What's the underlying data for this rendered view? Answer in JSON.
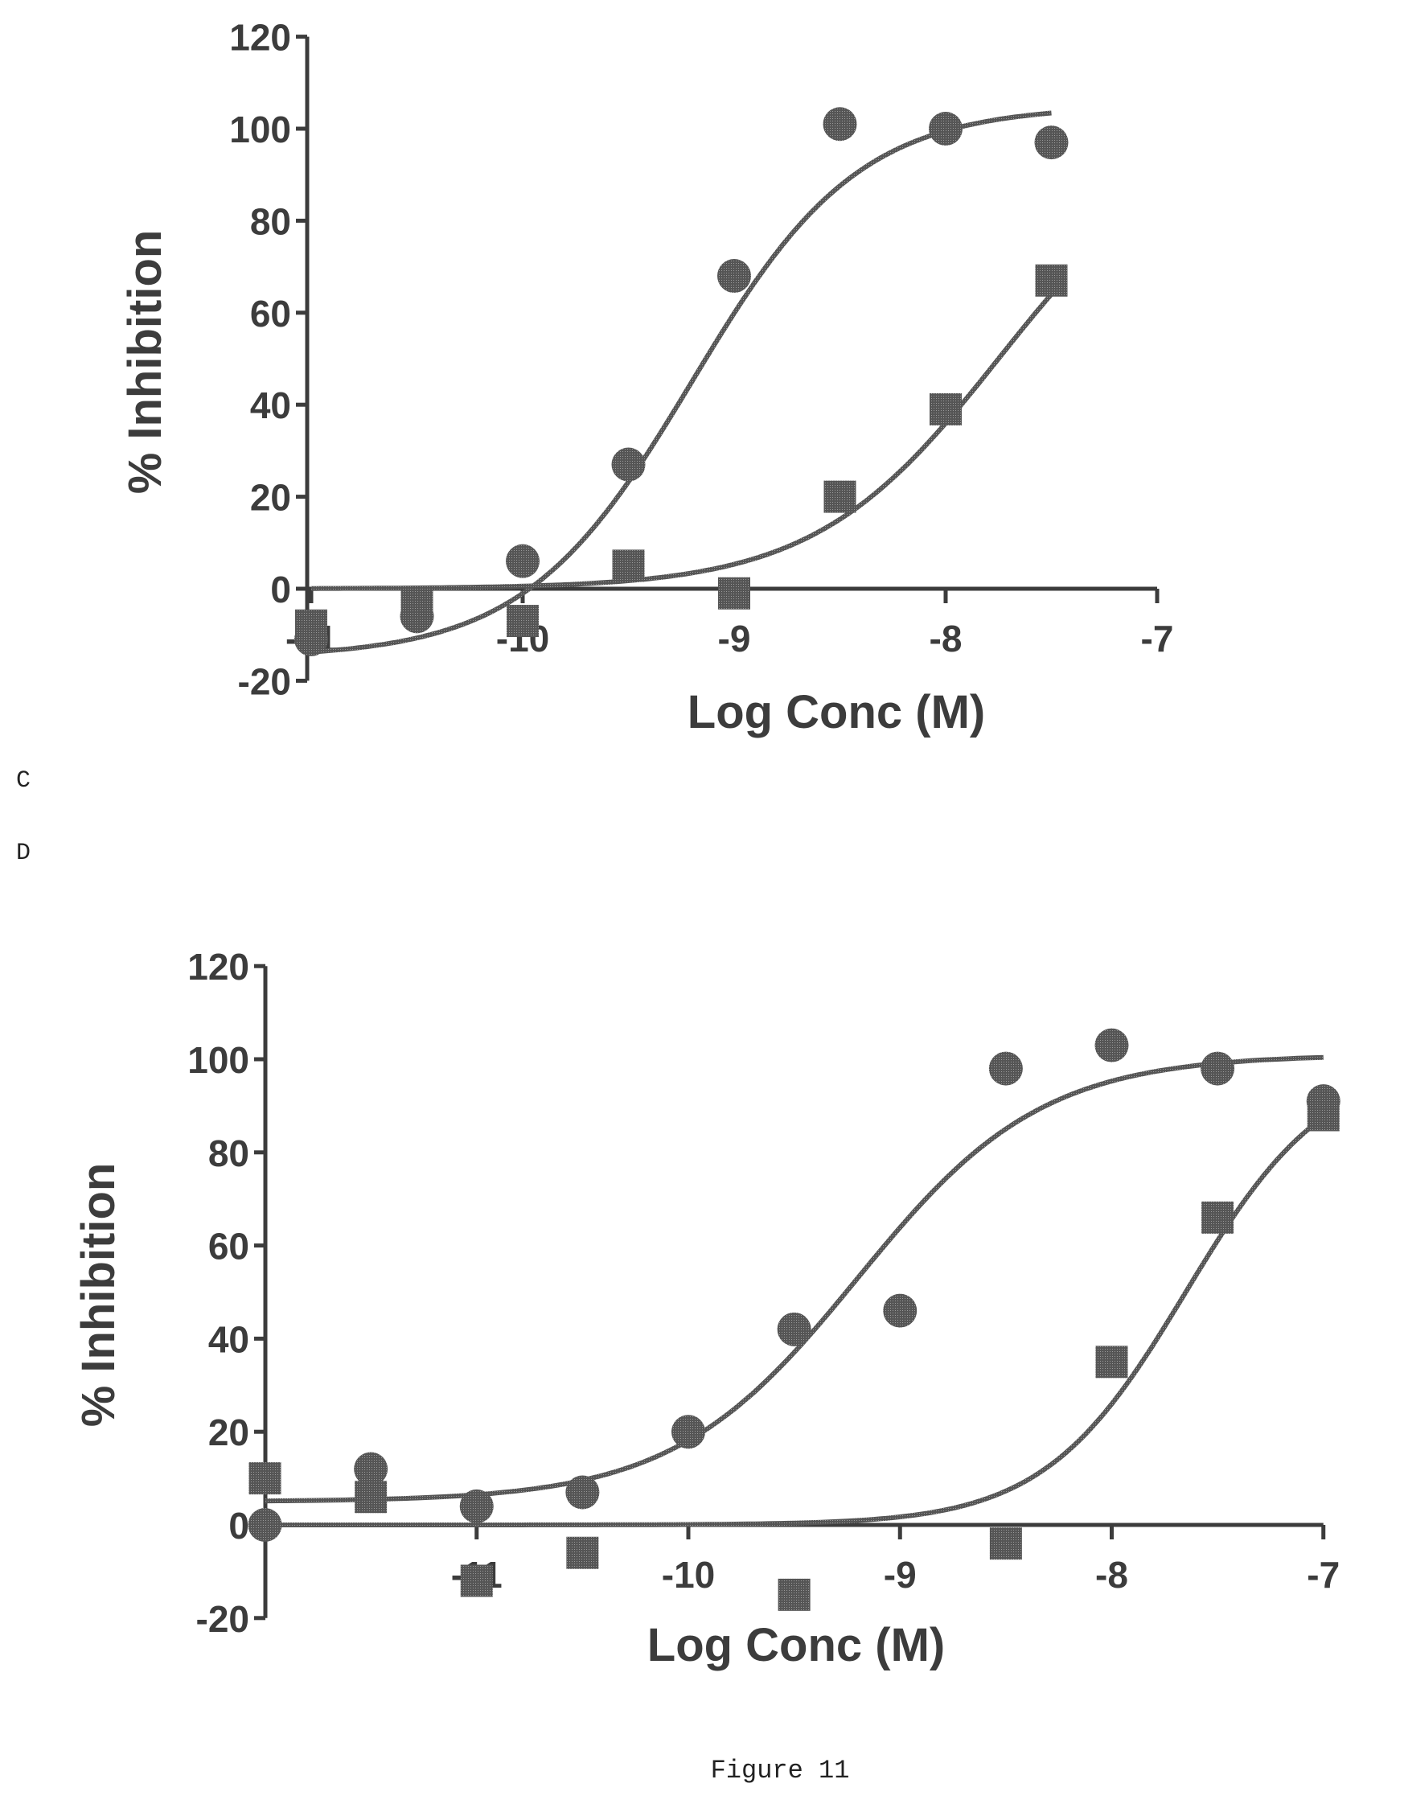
{
  "panel_labels": [
    "C",
    "D"
  ],
  "caption": "Figure 11",
  "colors": {
    "ink": "#3c3c3c",
    "background": "#ffffff"
  },
  "chart_data": [
    {
      "type": "scatter",
      "title": "",
      "xlabel": "Log Conc (M)",
      "ylabel": "% Inhibition",
      "xlim": [
        -11,
        -7
      ],
      "ylim": [
        -20,
        120
      ],
      "xticks": [
        -11,
        -10,
        -9,
        -8,
        -7
      ],
      "xtick_labels": [
        "-11",
        "-10",
        "-9",
        "-8",
        "-7"
      ],
      "yticks": [
        -20,
        0,
        20,
        40,
        60,
        80,
        100,
        120
      ],
      "ytick_labels": [
        "-20",
        "0",
        "20",
        "40",
        "60",
        "80",
        "100",
        "120"
      ],
      "legend": "none",
      "grid": false,
      "series": [
        {
          "marker": "circle",
          "x": [
            -11,
            -10.5,
            -10,
            -9.5,
            -9,
            -8.5,
            -8,
            -7.5
          ],
          "y": [
            -11,
            -6,
            6,
            27,
            68,
            101,
            100,
            97
          ],
          "fit": {
            "bottom": -15,
            "top": 105,
            "logEC50": -9.2,
            "hill": 1.1,
            "range": [
              -11,
              -7.5
            ]
          }
        },
        {
          "marker": "square",
          "x": [
            -11,
            -10.5,
            -10,
            -9.5,
            -9,
            -8.5,
            -8,
            -7.5
          ],
          "y": [
            -8,
            -3,
            -7,
            5,
            -1,
            20,
            39,
            67
          ],
          "fit": {
            "bottom": 0,
            "top": 100,
            "logEC50": -7.75,
            "hill": 1.0,
            "range": [
              -11,
              -7.5
            ]
          }
        }
      ]
    },
    {
      "type": "scatter",
      "title": "",
      "xlabel": "Log Conc (M)",
      "ylabel": "% Inhibition",
      "xlim": [
        -12,
        -7
      ],
      "ylim": [
        -20,
        120
      ],
      "xticks": [
        -11,
        -10,
        -9,
        -8,
        -7
      ],
      "xtick_labels": [
        "-11",
        "-10",
        "-9",
        "-8",
        "-7"
      ],
      "yticks": [
        -20,
        0,
        20,
        40,
        60,
        80,
        100,
        120
      ],
      "ytick_labels": [
        "-20",
        "0",
        "20",
        "40",
        "60",
        "80",
        "100",
        "120"
      ],
      "legend": "none",
      "grid": false,
      "series": [
        {
          "marker": "circle",
          "x": [
            -12,
            -11.5,
            -11,
            -10.5,
            -10,
            -9.5,
            -9,
            -8.5,
            -8,
            -7.5,
            -7
          ],
          "y": [
            0,
            12,
            4,
            7,
            20,
            42,
            46,
            98,
            103,
            98,
            91
          ],
          "fit": {
            "bottom": 5,
            "top": 101,
            "logEC50": -9.2,
            "hill": 1.0,
            "range": [
              -12,
              -7
            ]
          }
        },
        {
          "marker": "square",
          "x": [
            -12,
            -11.5,
            -11,
            -10.5,
            -9.5,
            -8.5,
            -8,
            -7.5,
            -7
          ],
          "y": [
            10,
            6,
            -12,
            -6,
            -15,
            -4,
            35,
            66,
            88
          ],
          "fit": {
            "bottom": 0,
            "top": 100,
            "logEC50": -7.65,
            "hill": 1.3,
            "range": [
              -12,
              -7
            ]
          }
        }
      ]
    }
  ]
}
